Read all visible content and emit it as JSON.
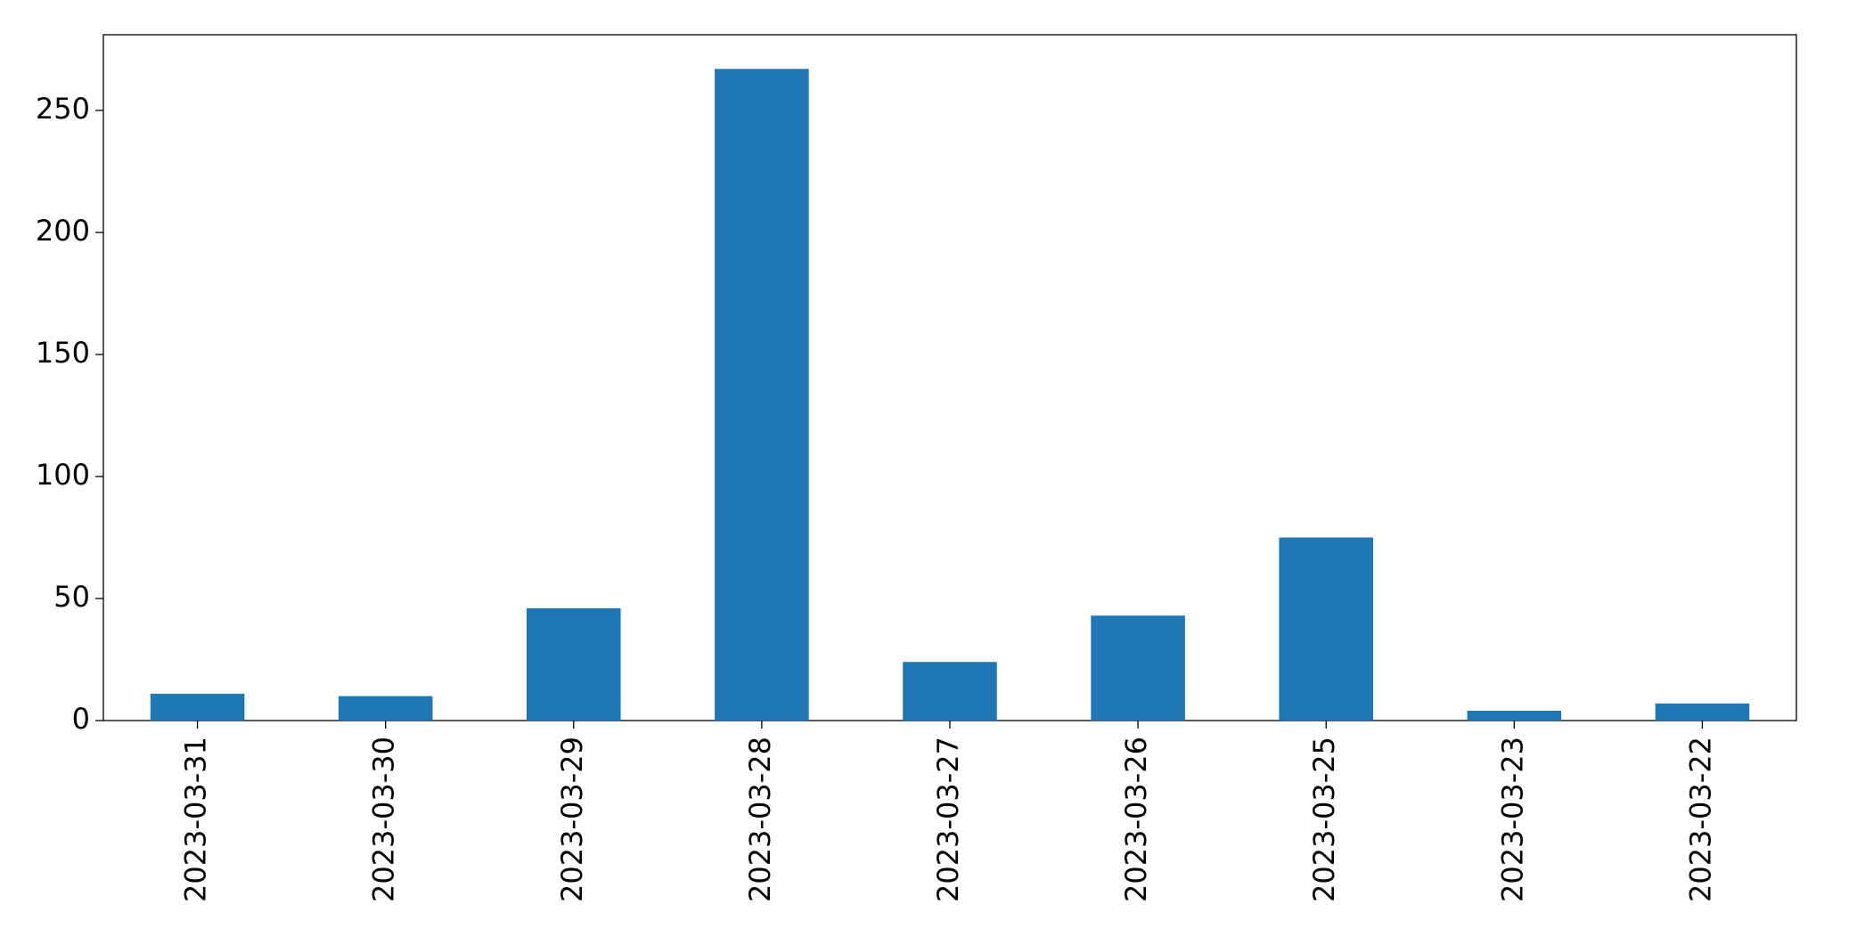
{
  "chart_data": {
    "type": "bar",
    "categories": [
      "2023-03-31",
      "2023-03-30",
      "2023-03-29",
      "2023-03-28",
      "2023-03-27",
      "2023-03-26",
      "2023-03-25",
      "2023-03-23",
      "2023-03-22"
    ],
    "values": [
      11,
      10,
      46,
      267,
      24,
      43,
      75,
      4,
      7
    ],
    "color": "#1f77b4",
    "ylim": [
      0,
      281
    ],
    "yticks": [
      0,
      50,
      100,
      150,
      200,
      250
    ],
    "grid": false
  }
}
